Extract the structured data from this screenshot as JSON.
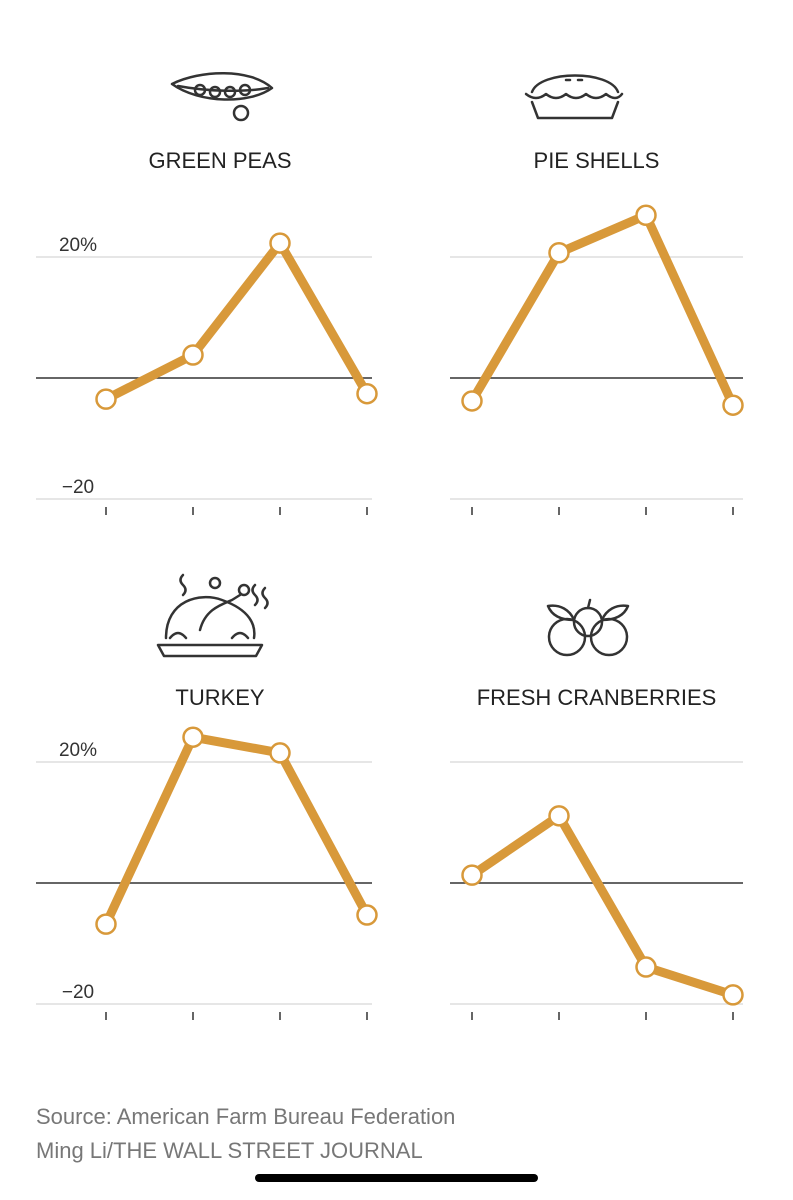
{
  "chart_data": [
    {
      "type": "line",
      "title": "GREEN PEAS",
      "categories": [
        null,
        null,
        null,
        null
      ],
      "series": [
        {
          "color": "#d8993a",
          "values": [
            -3.5,
            3.8,
            22.3,
            -2.6
          ]
        }
      ],
      "ylim": [
        -21,
        28
      ],
      "yticks": [
        {
          "value": -20,
          "label": "−20"
        },
        0,
        {
          "value": 20,
          "label": "20%"
        }
      ],
      "grid": true
    },
    {
      "type": "line",
      "title": "PIE SHELLS",
      "categories": [
        null,
        null,
        null,
        null
      ],
      "series": [
        {
          "color": "#d8993a",
          "values": [
            -3.8,
            20.7,
            26.9,
            -4.5
          ]
        }
      ],
      "ylim": [
        -21,
        28
      ],
      "yticks": [
        -20,
        0,
        20
      ],
      "grid": true
    },
    {
      "type": "line",
      "title": "TURKEY",
      "categories": [
        null,
        null,
        null,
        null
      ],
      "series": [
        {
          "color": "#d8993a",
          "values": [
            -6.8,
            24.1,
            21.5,
            -5.3
          ]
        }
      ],
      "ylim": [
        -21,
        28
      ],
      "yticks": [
        {
          "value": -20,
          "label": "−20"
        },
        0,
        {
          "value": 20,
          "label": "20%"
        }
      ],
      "grid": true
    },
    {
      "type": "line",
      "title": "FRESH CRANBERRIES",
      "categories": [
        null,
        null,
        null,
        null
      ],
      "series": [
        {
          "color": "#d8993a",
          "values": [
            1.3,
            11.1,
            -13.9,
            -18.5
          ]
        }
      ],
      "ylim": [
        -21,
        28
      ],
      "yticks": [
        -20,
        0,
        20
      ],
      "grid": true
    }
  ],
  "source": "Source: American Farm Bureau Federation",
  "credit": "Ming Li/THE WALL STREET JOURNAL"
}
